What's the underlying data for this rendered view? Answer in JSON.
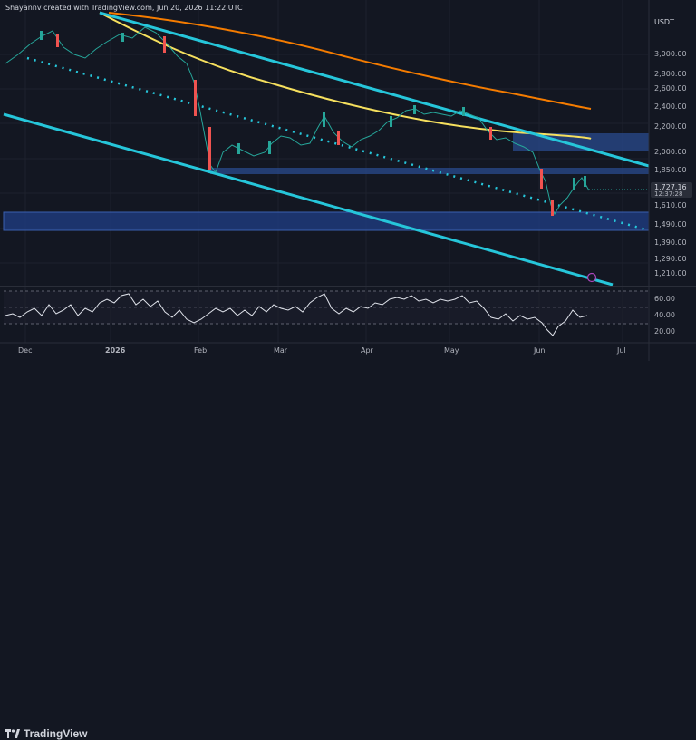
{
  "header": {
    "creator_line": "Shayannv created with TradingView.com, Jun 20, 2026 11:22 UTC"
  },
  "price_axis": {
    "unit": "USDT",
    "ticks": [
      "3,000.00",
      "2,800.00",
      "2,600.00",
      "2,400.00",
      "2,200.00",
      "2,000.00",
      "1,850.00",
      "1,610.00",
      "1,490.00",
      "1,390.00",
      "1,290.00",
      "1,210.00"
    ]
  },
  "current_price": {
    "value": "1,727.16",
    "countdown": "12:37:28"
  },
  "time_axis": {
    "labels": [
      "Dec",
      "2026",
      "Feb",
      "Mar",
      "Apr",
      "May",
      "Jun",
      "Jul"
    ]
  },
  "rsi_axis": {
    "ticks": [
      "60.00",
      "40.00",
      "20.00"
    ]
  },
  "brand": {
    "name": "TradingView"
  },
  "colors": {
    "background": "#131722",
    "channel": "#26c6da",
    "ma_long": "#f57c00",
    "ma_short": "#f6e05e",
    "zone": "#2a4b8d",
    "up": "#26a69a",
    "down": "#ef5350",
    "rsi": "#e0e3eb"
  }
}
